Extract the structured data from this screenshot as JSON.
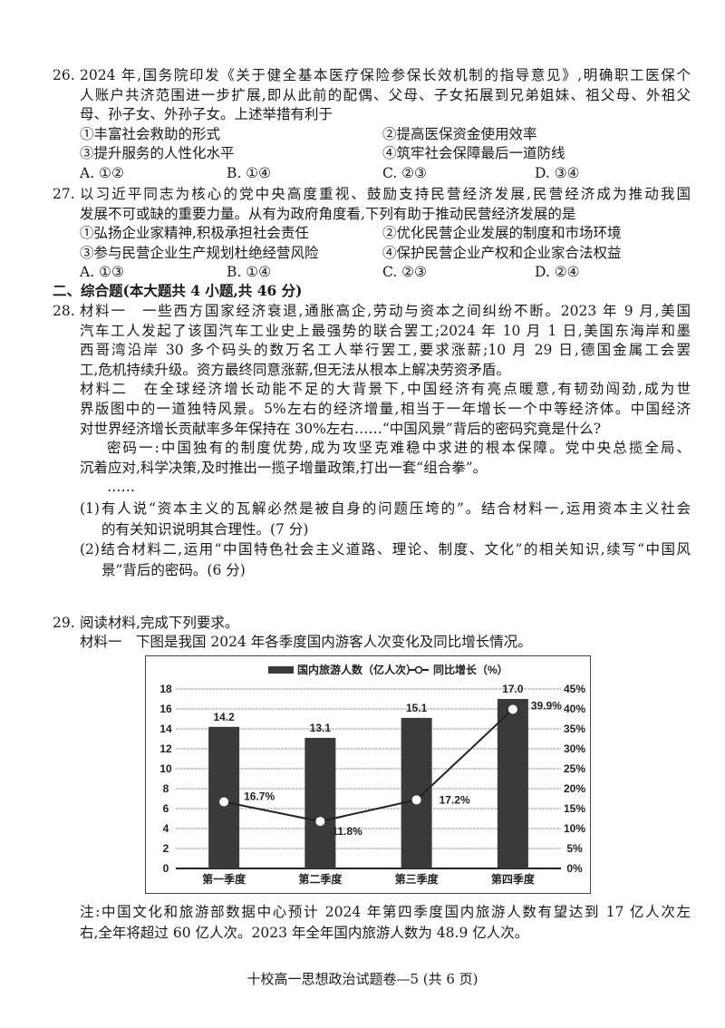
{
  "q26": {
    "number": "26.",
    "lines": [
      "2024 年,国务院印发《关于健全基本医疗保险参保长效机制的指导意见》,明确职工医保个",
      "人账户共济范围进一步扩展,即从此前的配偶、父母、子女拓展到兄弟姐妹、祖父母、外祖父",
      "母、孙子女、外孙子女。上述举措有利于"
    ],
    "options": [
      "①丰富社会救助的形式",
      "②提高医保资金使用效率",
      "③提升服务的人性化水平",
      "④筑牢社会保障最后一道防线"
    ],
    "choices": [
      "A. ①②",
      "B. ①④",
      "C. ②③",
      "D. ③④"
    ]
  },
  "q27": {
    "number": "27.",
    "lines": [
      "以习近平同志为核心的党中央高度重视、鼓励支持民营经济发展,民营经济成为推动我国",
      "发展不可或缺的重要力量。从有为政府角度看,下列有助于推动民营经济发展的是"
    ],
    "options": [
      "①弘扬企业家精神,积极承担社会责任",
      "②优化民营企业发展的制度和市场环境",
      "③参与民营企业生产规划杜绝经营风险",
      "④保护民营企业产权和企业家合法权益"
    ],
    "choices": [
      "A. ①③",
      "B. ①④",
      "C. ②③",
      "D. ②④"
    ]
  },
  "section2": "二、综合题(本大题共 4 小题,共 46 分)",
  "q28": {
    "number": "28.",
    "lines": [
      "材料一　一些西方国家经济衰退,通胀高企,劳动与资本之间纠纷不断。2023 年 9 月,美国",
      "汽车工人发起了该国汽车工业史上最强势的联合罢工;2024 年 10 月 1 日,美国东海岸和墨",
      "西哥湾沿岸 30 多个码头的数万名工人举行罢工,要求涨薪;10 月 29 日,德国金属工会罢",
      "工,危机持续升级。资方最终同意涨薪,但无法从根本上解决劳资矛盾。",
      "材料二　在全球经济增长动能不足的大背景下,中国经济有亮点暖意,有韧劲闯劲,成为世",
      "界版图中的一道独特风景。5%左右的经济增量,相当于一年增长一个中等经济体。中国经济",
      "对世界经济增长贡献率多年保持在 30%左右……“中国风景”背后的密码究竟是什么?",
      "密码一:中国独有的制度优势,成为攻坚克难稳中求进的根本保障。党中央总揽全局、",
      "沉着应对,科学决策,及时推出一揽子增量政策,打出一套“组合拳”。",
      "……"
    ],
    "sub": [
      "(1)有人说“资本主义的瓦解必然是被自身的问题压垮的”。结合材料一,运用资本主义社会",
      "的有关知识说明其合理性。(7 分)",
      "(2)结合材料二,运用“中国特色社会主义道路、理论、制度、文化”的相关知识,续写“中国风",
      "景”背后的密码。(6 分)"
    ]
  },
  "q29": {
    "number": "29.",
    "lines": [
      "阅读材料,完成下列要求。",
      "材料一　下图是我国 2024 年各季度国内游客人次变化及同比增长情况。"
    ],
    "note": [
      "注:中国文化和旅游部数据中心预计 2024 年第四季度国内旅游人数有望达到 17 亿人次左",
      "右,全年将超过 60 亿人次。2023 年全年国内旅游人数为 48.9 亿人次。"
    ]
  },
  "chart_data": {
    "type": "bar",
    "categories": [
      "第一季度",
      "第二季度",
      "第三季度",
      "第四季度"
    ],
    "series": [
      {
        "name": "国内旅游人数（亿人次）",
        "type": "bar",
        "axis": "left",
        "values": [
          14.2,
          13.1,
          15.1,
          17.0
        ],
        "labels": [
          "14.2",
          "13.1",
          "15.1",
          "17.0"
        ],
        "color": "#3a3a3a"
      },
      {
        "name": "同比增长（%）",
        "type": "line",
        "axis": "right",
        "values": [
          16.7,
          11.8,
          17.2,
          39.9
        ],
        "labels": [
          "16.7%",
          "11.8%",
          "17.2%",
          "39.9%"
        ],
        "color": "#222222"
      }
    ],
    "left_axis": {
      "ylim": [
        0,
        18
      ],
      "ticks": [
        "0",
        "2",
        "4",
        "6",
        "8",
        "10",
        "12",
        "14",
        "16",
        "18"
      ]
    },
    "right_axis": {
      "ylim": [
        0,
        45
      ],
      "ticks": [
        "0%",
        "5%",
        "10%",
        "15%",
        "20%",
        "25%",
        "30%",
        "35%",
        "40%",
        "45%"
      ]
    },
    "grid": true,
    "legend": "top"
  },
  "footer": "十校高一思想政治试题卷—5 (共 6 页)"
}
